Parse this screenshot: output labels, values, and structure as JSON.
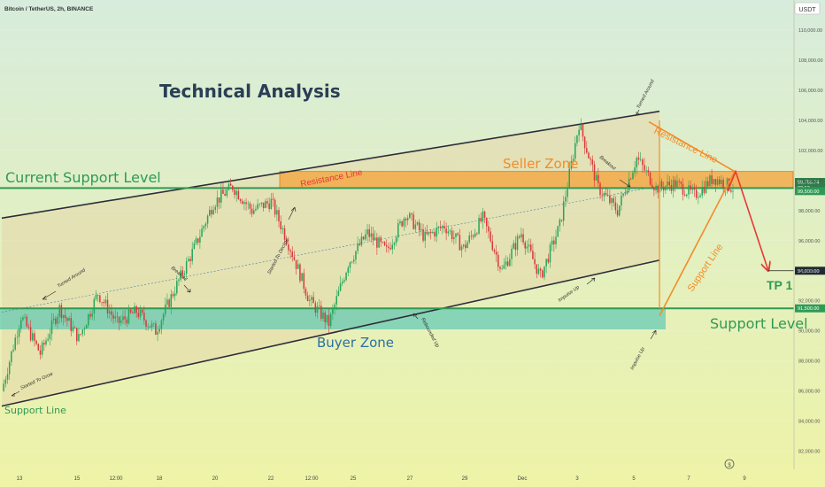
{
  "header": {
    "symbol": "Bitcoin / TetherUS, 2h, BINANCE",
    "currency": "USDT"
  },
  "title": "Technical Analysis",
  "colors": {
    "bg_top": "#d7ecdc",
    "bg_bottom": "#eef3a6",
    "channel_fill": "#e6d7a9",
    "seller": "#f5a33a",
    "buyer": "#5ec9b5",
    "green_line": "#2e9a55",
    "orange": "#f28c28",
    "red": "#e53935",
    "up": "#26a65b",
    "down": "#d63b3b",
    "channel_line": "#2d2d3a"
  },
  "annotations": {
    "current_support": "Current Support Level",
    "seller_zone": "Seller Zone",
    "buyer_zone": "Buyer Zone",
    "support_level": "Support Level",
    "support_line_left": "Support Line",
    "resistance_line_left": "Resistance Line",
    "resistance_line_right": "Resistance Line",
    "support_line_right": "Support Line",
    "tp1": "TP 1",
    "turned_around_1": "Turned Around",
    "turned_around_2": "Turned Around",
    "breakout_1": "Breakout",
    "breakout_2": "Breakout",
    "started_to_grow": "Started To Grow",
    "started_to_decline": "Started To Decline",
    "rebounded_up": "Rebounded Up",
    "impulse_up_1": "Impulse Up",
    "impulse_up_2": "Impulse Up"
  },
  "chart_data": {
    "type": "candlestick",
    "y_axis": {
      "min": 80800,
      "max": 112000,
      "ticks": [
        "82,000.00",
        "84,000.00",
        "86,000.00",
        "88,000.00",
        "90,000.00",
        "92,000.00",
        "94,000.00",
        "96,000.00",
        "98,000.00",
        "100,000.00",
        "102,000.00",
        "104,000.00",
        "106,000.00",
        "108,000.00",
        "110,000.00"
      ],
      "tick_values": [
        82000,
        84000,
        86000,
        88000,
        90000,
        92000,
        94000,
        96000,
        98000,
        100000,
        102000,
        104000,
        106000,
        108000,
        110000
      ]
    },
    "x_axis": {
      "labels": [
        "13",
        "15",
        "12:00",
        "18",
        "20",
        "22",
        "12:00",
        "25",
        "27",
        "29",
        "Dec",
        "3",
        "5",
        "7",
        "9"
      ]
    },
    "price_labels": [
      {
        "value": 99755.74,
        "text": "99,755.74",
        "sub": "02:53"
      },
      {
        "value": 99500,
        "text": "99,500.00"
      },
      {
        "value": 94000,
        "text": "94,000.00"
      },
      {
        "value": 91500,
        "text": "91,500.00"
      }
    ],
    "levels": {
      "current_support": 99500,
      "support_level": 91500,
      "tp1": 94000
    },
    "zones": {
      "seller": {
        "from": 99500,
        "to": 100600
      },
      "buyer": {
        "from": 90100,
        "to": 91500
      }
    },
    "channel": {
      "upper": {
        "start": 97500,
        "end": 104600
      },
      "lower": {
        "start": 85000,
        "end": 94700
      }
    },
    "key_prices": [
      86000,
      91000,
      88500,
      91500,
      89500,
      92500,
      90500,
      91300,
      90000,
      92800,
      95500,
      98500,
      99600,
      98000,
      98600,
      95500,
      92000,
      90500,
      94500,
      96500,
      95300,
      97800,
      96200,
      97000,
      95500,
      97500,
      94000,
      96500,
      93600,
      97000,
      103800,
      99500,
      98000,
      101500,
      99500,
      99800,
      99000,
      100200,
      99500
    ]
  }
}
